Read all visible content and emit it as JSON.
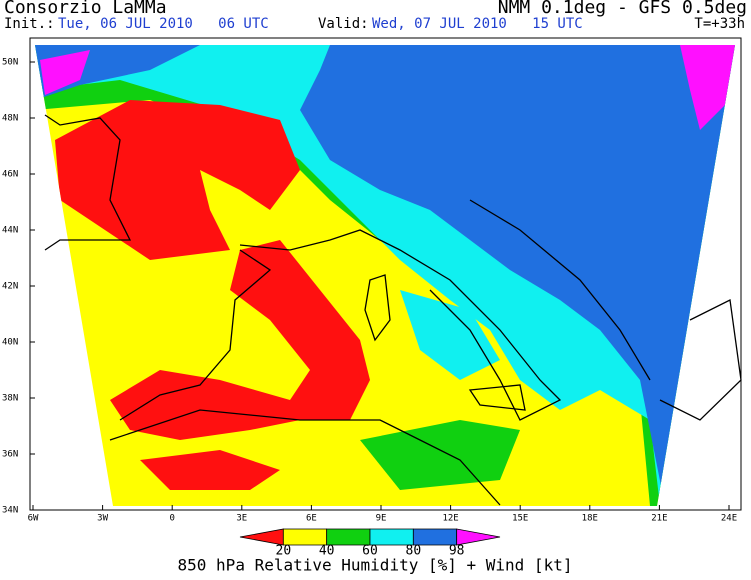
{
  "header": {
    "left_title": "Consorzio LaMMa",
    "init_label": "Init.:",
    "init_time": "Tue, 06 JUL 2010   06 UTC",
    "right_title": "NMM 0.1deg - GFS 0.5deg",
    "valid_label": "Valid:",
    "valid_time": "Wed, 07 JUL 2010   15 UTC",
    "forecast_hour": "T=+33h"
  },
  "map": {
    "lat_labels": [
      "50N",
      "48N",
      "46N",
      "44N",
      "42N",
      "40N",
      "38N",
      "36N",
      "34N"
    ],
    "lon_labels": [
      "6W",
      "3W",
      "0",
      "3E",
      "6E",
      "9E",
      "12E",
      "15E",
      "18E",
      "21E",
      "24E"
    ]
  },
  "colorbar": {
    "ticks": [
      20,
      40,
      60,
      80,
      98
    ],
    "colors": [
      "#ff1010",
      "#ffff00",
      "#10d010",
      "#10f0f0",
      "#2070e0",
      "#ff10ff"
    ]
  },
  "footer": {
    "title": "850 hPa Relative Humidity [%] + Wind [kt]"
  }
}
